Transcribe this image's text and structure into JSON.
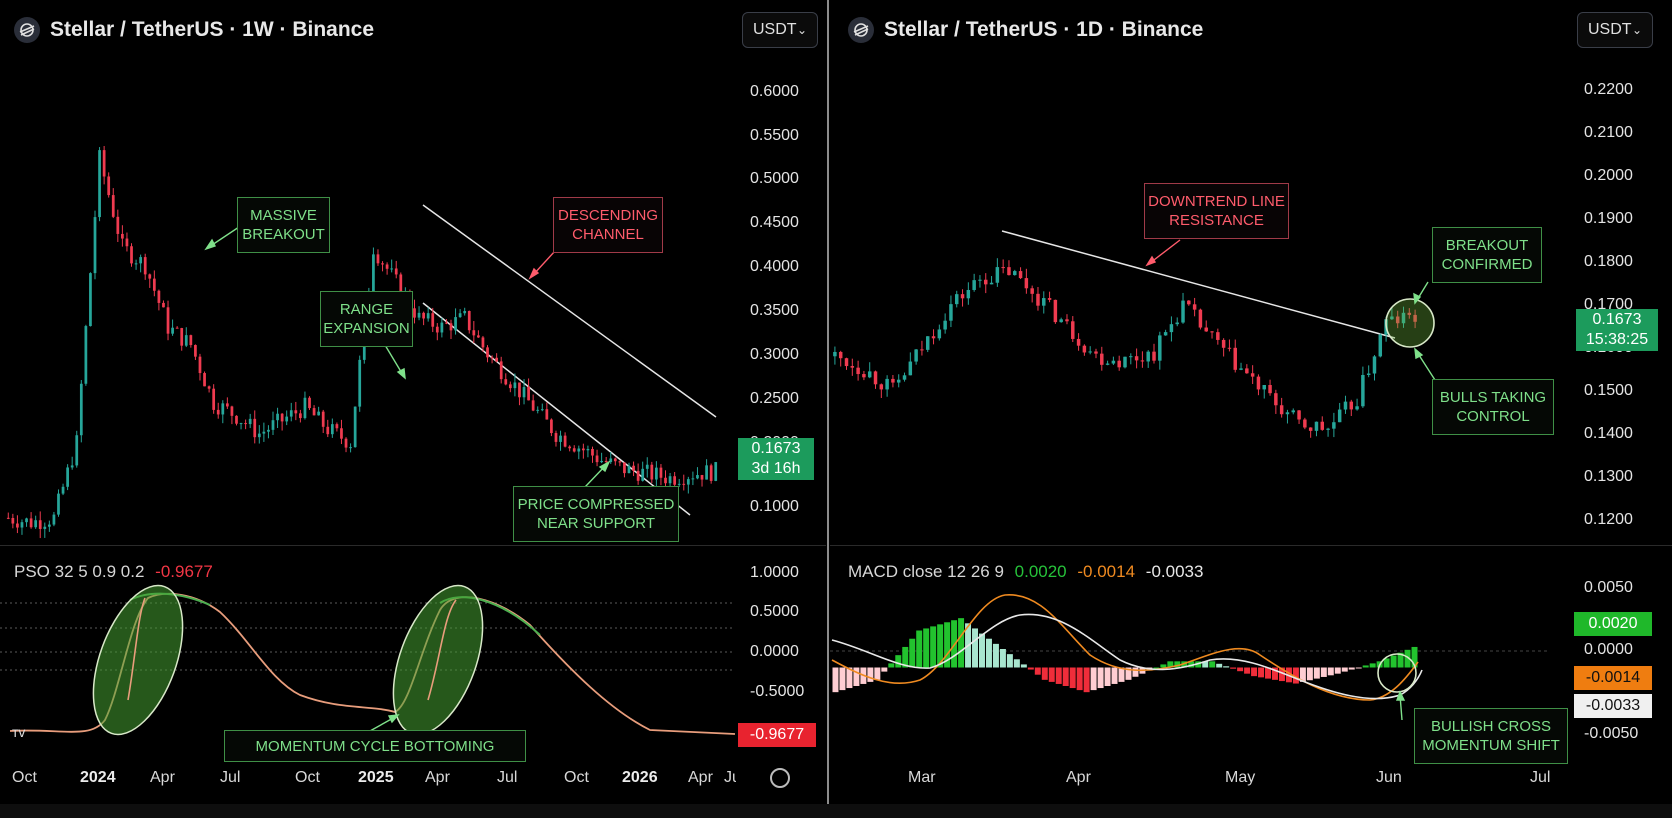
{
  "left": {
    "title": "Stellar / TetherUS · 1W · Binance",
    "currency": "USDT",
    "price_badge": {
      "price": "0.1673",
      "countdown": "3d 16h"
    },
    "indicator": {
      "name": "PSO 32 5 0.9 0.2",
      "value": "-0.9677"
    },
    "indicator_badge": "-0.9677",
    "annotations": {
      "massive_breakout": "MASSIVE\nBREAKOUT",
      "range_expansion": "RANGE\nEXPANSION",
      "descending_channel": "DESCENDING\nCHANNEL",
      "price_compressed": "PRICE COMPRESSED\nNEAR SUPPORT",
      "momentum_cycle": "MOMENTUM CYCLE BOTTOMING"
    }
  },
  "right": {
    "title": "Stellar / TetherUS · 1D · Binance",
    "currency": "USDT",
    "price_badge": {
      "price": "0.1673",
      "countdown": "15:38:25"
    },
    "indicator": {
      "name": "MACD close 12 26 9",
      "v1": "0.0020",
      "v2": "-0.0014",
      "v3": "-0.0033"
    },
    "macd_badges": {
      "hist": "0.0020",
      "macd": "-0.0014",
      "signal": "-0.0033"
    },
    "annotations": {
      "downtrend": "DOWNTREND LINE\nRESISTANCE",
      "breakout": "BREAKOUT\nCONFIRMED",
      "bulls": "BULLS TAKING\nCONTROL",
      "bullish_cross": "BULLISH CROSS\nMOMENTUM SHIFT"
    }
  },
  "colors": {
    "up": "#26a69a",
    "down": "#ef3b50",
    "annotation_green": "#7fe08a",
    "annotation_red": "#ff5c6c",
    "badge": "#1c9b5c"
  },
  "chart_data": [
    {
      "type": "candlestick",
      "title": "Stellar / TetherUS · 1W · Binance",
      "y_ticks": [
        "0.6000",
        "0.5500",
        "0.5000",
        "0.4500",
        "0.4000",
        "0.3500",
        "0.3000",
        "0.2500",
        "0.2000",
        "0.1000"
      ],
      "x_ticks": [
        "Oct",
        "2024",
        "Apr",
        "Jul",
        "Oct",
        "2025",
        "Apr",
        "Jul",
        "Oct",
        "2026",
        "Apr",
        "Jul"
      ],
      "ylim": [
        0.09,
        0.62
      ],
      "x": [
        "2023-09",
        "2023-10",
        "2023-11",
        "2023-12",
        "2024-01",
        "2024-02",
        "2024-03",
        "2024-04",
        "2024-05",
        "2024-06",
        "2024-07",
        "2024-08",
        "2024-09",
        "2024-10",
        "2024-11",
        "2024-12",
        "2025-01",
        "2025-02",
        "2025-03",
        "2025-04",
        "2025-05",
        "2025-06",
        "2025-07",
        "2025-08",
        "2025-09",
        "2025-10",
        "2025-11",
        "2025-12",
        "2026-01",
        "2026-02",
        "2026-03",
        "2026-04"
      ],
      "close": [
        0.115,
        0.11,
        0.115,
        0.2,
        0.52,
        0.42,
        0.4,
        0.33,
        0.31,
        0.245,
        0.23,
        0.21,
        0.225,
        0.24,
        0.215,
        0.2,
        0.42,
        0.38,
        0.34,
        0.33,
        0.34,
        0.3,
        0.27,
        0.24,
        0.21,
        0.195,
        0.18,
        0.17,
        0.165,
        0.16,
        0.165,
        0.1673
      ],
      "last_price": 0.1673
    },
    {
      "type": "line",
      "title": "PSO 32 5 0.9 0.2",
      "y_ticks": [
        "1.0000",
        "0.5000",
        "0.0000",
        "-0.5000"
      ],
      "ylim": [
        -1.2,
        1.2
      ],
      "x": [
        "2023-09",
        "2023-11",
        "2024-01",
        "2024-02",
        "2024-03",
        "2024-05",
        "2024-07",
        "2024-09",
        "2024-11",
        "2024-12",
        "2025-01",
        "2025-02",
        "2025-03",
        "2025-05",
        "2025-07",
        "2025-09",
        "2025-11",
        "2026-01",
        "2026-04"
      ],
      "values": [
        -0.95,
        -0.97,
        -0.9,
        0.0,
        0.7,
        0.75,
        0.4,
        -0.2,
        -0.6,
        -0.75,
        -0.8,
        0.2,
        0.7,
        0.7,
        0.5,
        -0.3,
        -0.85,
        -0.95,
        -0.9677
      ]
    },
    {
      "type": "candlestick",
      "title": "Stellar / TetherUS · 1D · Binance",
      "y_ticks": [
        "0.2200",
        "0.2100",
        "0.2000",
        "0.1900",
        "0.1800",
        "0.1700",
        "0.1600",
        "0.1500",
        "0.1400",
        "0.1300",
        "0.1200"
      ],
      "x_ticks": [
        "Mar",
        "Apr",
        "May",
        "Jun",
        "Jul"
      ],
      "ylim": [
        0.115,
        0.225
      ],
      "close": [
        0.158,
        0.155,
        0.15,
        0.16,
        0.17,
        0.176,
        0.178,
        0.172,
        0.165,
        0.158,
        0.157,
        0.159,
        0.17,
        0.162,
        0.155,
        0.148,
        0.142,
        0.141,
        0.148,
        0.166,
        0.1673
      ],
      "last_price": 0.1673
    },
    {
      "type": "line",
      "title": "MACD close 12 26 9",
      "series": [
        {
          "name": "MACD",
          "values": [
            -0.001,
            -0.0025,
            0.0005,
            0.004,
            0.0045,
            0.002,
            -0.0015,
            -0.003,
            -0.0015,
            -0.0005,
            -0.0025,
            -0.0045,
            -0.005,
            -0.004,
            -0.0014
          ]
        },
        {
          "name": "Signal",
          "values": [
            0.001,
            -0.0015,
            -0.0025,
            0.0,
            0.003,
            0.003,
            0.0005,
            -0.002,
            -0.002,
            -0.001,
            -0.0018,
            -0.0032,
            -0.0045,
            -0.0045,
            -0.0033
          ]
        }
      ],
      "y_ticks": [
        "0.0050",
        "0.0000",
        "-0.0050"
      ],
      "ylim": [
        -0.0075,
        0.0075
      ]
    }
  ]
}
